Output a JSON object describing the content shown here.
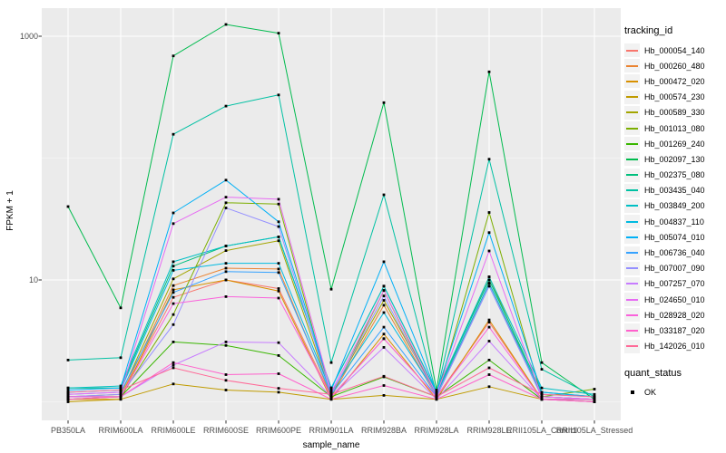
{
  "figure": {
    "colors": {
      "panel_bg": "#EBEBEB",
      "grid_major": "#FFFFFF",
      "grid_minor": "#FFFFFF",
      "tick_text": "#4D4D4D",
      "tick_mark": "#333333",
      "point": "#000000",
      "legend_key_bg": "#F2F2F2"
    },
    "y_axis": {
      "label": "FPKM + 1",
      "ticks": [
        {
          "label": "1000",
          "value": 1000
        },
        {
          "label": "10",
          "value": 10
        }
      ],
      "minor_grid_values": [
        1,
        100
      ]
    },
    "x_axis": {
      "label": "sample_name"
    },
    "legend_tracking": {
      "title": "tracking_id"
    },
    "legend_quant": {
      "title": "quant_status",
      "items": [
        {
          "label": "OK"
        }
      ]
    }
  },
  "chart_data": {
    "type": "line",
    "title": "",
    "xlabel": "sample_name",
    "ylabel": "FPKM + 1",
    "y_scale": "log10",
    "ylim": [
      0.7,
      2000
    ],
    "grid": true,
    "legend_position": "right",
    "marker": "black-square",
    "categories": [
      "PB350LA",
      "RRIM600LA",
      "RRIM600LE",
      "RRIM600SE",
      "RRIM600PE",
      "RRIM901LA",
      "RRIM928BA",
      "RRIM928LA",
      "RRIM928LE",
      "RRII105LA_Control",
      "RRII105LA_Stressed"
    ],
    "series": [
      {
        "name": "Hb_000054_140",
        "color": "#F8766D",
        "values": [
          1.1,
          1.1,
          7.2,
          10.0,
          8.5,
          1.1,
          3.3,
          1.1,
          4.5,
          1.05,
          1.05
        ]
      },
      {
        "name": "Hb_000260_480",
        "color": "#EA8331",
        "values": [
          1.05,
          1.1,
          9.0,
          12.5,
          12.3,
          1.1,
          6.2,
          1.1,
          9.4,
          1.1,
          1.05
        ]
      },
      {
        "name": "Hb_000472_020",
        "color": "#D89000",
        "values": [
          1.05,
          1.05,
          8.3,
          10.0,
          8.1,
          1.05,
          3.6,
          1.05,
          4.7,
          1.05,
          1.0
        ]
      },
      {
        "name": "Hb_000574_230",
        "color": "#C09B00",
        "values": [
          1.0,
          1.05,
          1.4,
          1.25,
          1.2,
          1.05,
          1.13,
          1.05,
          1.33,
          1.05,
          1.0
        ]
      },
      {
        "name": "Hb_000589_330",
        "color": "#A3A500",
        "values": [
          1.1,
          1.15,
          10.2,
          17.4,
          21.0,
          1.15,
          6.8,
          1.15,
          10.6,
          1.1,
          1.05
        ]
      },
      {
        "name": "Hb_001013_080",
        "color": "#7CAE00",
        "values": [
          1.05,
          1.1,
          5.2,
          43.0,
          42.0,
          1.1,
          8.2,
          1.1,
          35.8,
          1.1,
          1.27
        ]
      },
      {
        "name": "Hb_001269_240",
        "color": "#39B600",
        "values": [
          1.1,
          1.1,
          3.1,
          2.9,
          2.4,
          1.1,
          1.6,
          1.1,
          2.2,
          1.05,
          1.05
        ]
      },
      {
        "name": "Hb_002097_130",
        "color": "#00BB4E",
        "values": [
          40,
          5.9,
          690,
          1250,
          1060,
          8.4,
          285,
          1.25,
          510,
          2.1,
          1.05
        ]
      },
      {
        "name": "Hb_002375_080",
        "color": "#00BF7D",
        "values": [
          1.3,
          1.3,
          13.0,
          19.0,
          22.6,
          1.3,
          8.9,
          1.2,
          10.0,
          1.2,
          1.1
        ]
      },
      {
        "name": "Hb_003435_040",
        "color": "#00C1A3",
        "values": [
          2.2,
          2.3,
          157,
          267,
          330,
          2.1,
          50,
          1.15,
          98,
          1.85,
          1.1
        ]
      },
      {
        "name": "Hb_003849_200",
        "color": "#00BFC4",
        "values": [
          1.3,
          1.35,
          14.1,
          19.0,
          22.6,
          1.3,
          8.9,
          1.2,
          10.6,
          1.3,
          1.15
        ]
      },
      {
        "name": "Hb_004837_110",
        "color": "#00BAE0",
        "values": [
          1.2,
          1.25,
          12.0,
          13.7,
          13.7,
          1.2,
          5.4,
          1.15,
          9.4,
          1.15,
          1.1
        ]
      },
      {
        "name": "Hb_005074_010",
        "color": "#00B0F6",
        "values": [
          1.25,
          1.3,
          35.5,
          66,
          30,
          1.25,
          14.1,
          1.2,
          24.5,
          1.2,
          1.1
        ]
      },
      {
        "name": "Hb_006736_040",
        "color": "#35A2FF",
        "values": [
          1.15,
          1.2,
          7.9,
          11.7,
          11.5,
          1.15,
          4.1,
          1.1,
          8.9,
          1.1,
          1.05
        ]
      },
      {
        "name": "Hb_007007_090",
        "color": "#9590FF",
        "values": [
          1.1,
          1.15,
          4.3,
          39,
          27.4,
          1.15,
          7.4,
          1.1,
          8.9,
          1.1,
          1.05
        ]
      },
      {
        "name": "Hb_007257_070",
        "color": "#C77CFF",
        "values": [
          1.1,
          1.1,
          2.0,
          3.1,
          3.06,
          1.1,
          2.8,
          1.05,
          3.15,
          1.05,
          1.0
        ]
      },
      {
        "name": "Hb_024650_010",
        "color": "#E76BF3",
        "values": [
          1.15,
          1.2,
          29,
          47.8,
          46,
          1.2,
          8.2,
          1.15,
          17.3,
          1.1,
          1.05
        ]
      },
      {
        "name": "Hb_028928_020",
        "color": "#FA62DB",
        "values": [
          1.1,
          1.1,
          6.4,
          7.3,
          7.1,
          1.1,
          3.3,
          1.1,
          4.1,
          1.05,
          1.05
        ]
      },
      {
        "name": "Hb_033187_020",
        "color": "#FF61CC",
        "values": [
          1.05,
          1.1,
          2.1,
          1.67,
          1.7,
          1.05,
          1.36,
          1.05,
          1.67,
          1.05,
          1.0
        ]
      },
      {
        "name": "Hb_142026_010",
        "color": "#FF6A98",
        "values": [
          1.2,
          1.25,
          1.9,
          1.5,
          1.29,
          1.15,
          1.62,
          1.1,
          1.9,
          1.15,
          1.1
        ]
      }
    ]
  }
}
